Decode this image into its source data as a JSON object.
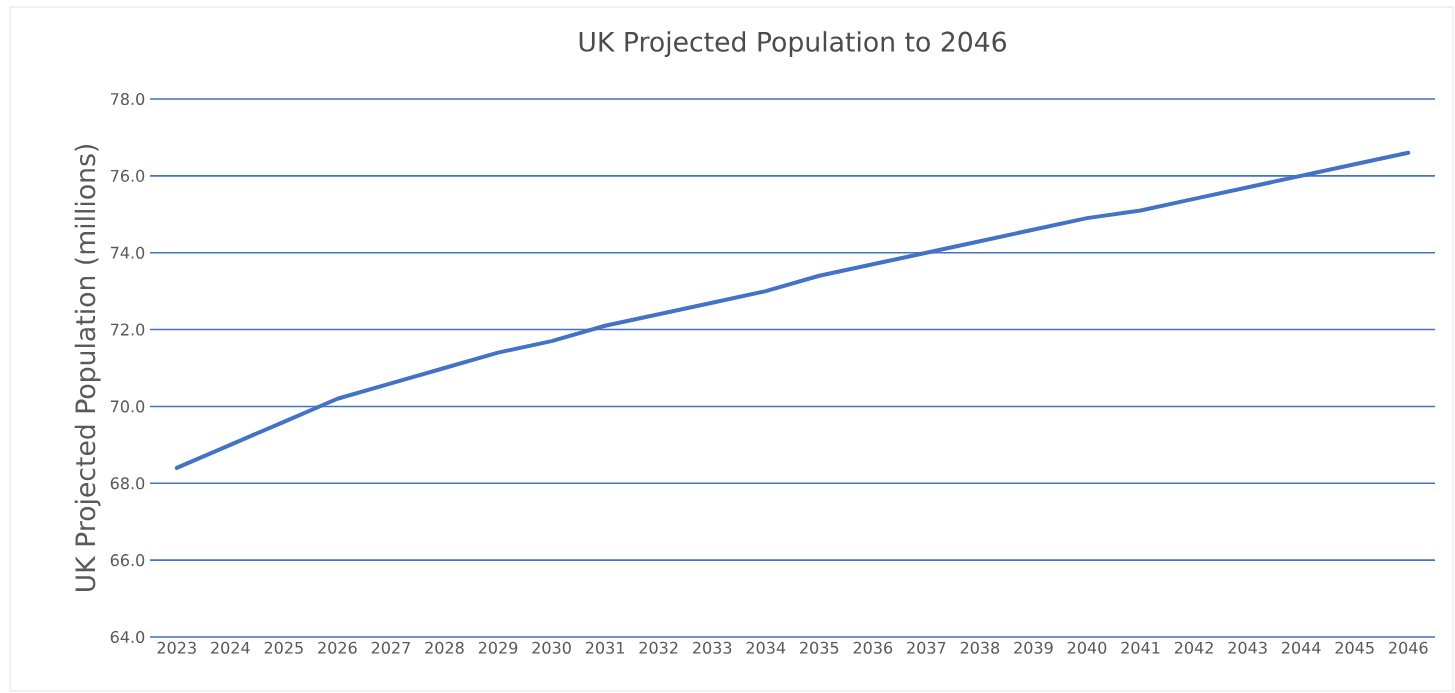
{
  "chart_data": {
    "type": "line",
    "title": "UK Projected Population to 2046",
    "ylabel": "UK Projected Population (millions)",
    "categories": [
      "2023",
      "2024",
      "2025",
      "2026",
      "2027",
      "2028",
      "2029",
      "2030",
      "2031",
      "2032",
      "2033",
      "2034",
      "2035",
      "2036",
      "2037",
      "2038",
      "2039",
      "2040",
      "2041",
      "2042",
      "2043",
      "2044",
      "2045",
      "2046"
    ],
    "series": [
      {
        "color": "#4472c4",
        "values": [
          68.4,
          69.0,
          69.6,
          70.2,
          70.6,
          71.0,
          71.4,
          71.7,
          72.1,
          72.4,
          72.7,
          73.0,
          73.4,
          73.7,
          74.0,
          74.3,
          74.6,
          74.9,
          75.1,
          75.4,
          75.7,
          76.0,
          76.3,
          76.6
        ]
      }
    ],
    "ylim": [
      64,
      78
    ],
    "yticks": [
      {
        "value": 64,
        "label": "64.0"
      },
      {
        "value": 66,
        "label": "66.0"
      },
      {
        "value": 68,
        "label": "68.0"
      },
      {
        "value": 70,
        "label": "70.0"
      },
      {
        "value": 72,
        "label": "72.0"
      },
      {
        "value": 74,
        "label": "74.0"
      },
      {
        "value": 76,
        "label": "76.0"
      },
      {
        "value": 78,
        "label": "78.0"
      }
    ],
    "grid": "y",
    "marker": "none",
    "line_style": "solid"
  }
}
